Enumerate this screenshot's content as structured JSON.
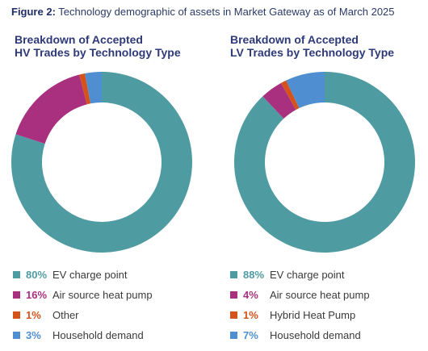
{
  "figure": {
    "label": "Figure 2:",
    "caption": "Technology demographic of assets in Market Gateway as of March 2025"
  },
  "chart_data": [
    {
      "type": "pie",
      "title_lines": [
        "Breakdown of Accepted",
        "HV Trades by Technology Type"
      ],
      "slices": [
        {
          "label": "EV charge point",
          "percent_label": "80%",
          "value": 80,
          "color": "#4f9ba2"
        },
        {
          "label": "Air source heat pump",
          "percent_label": "16%",
          "value": 16,
          "color": "#a8307f"
        },
        {
          "label": "Other",
          "percent_label": "1%",
          "value": 1,
          "color": "#d5521b"
        },
        {
          "label": "Household demand",
          "percent_label": "3%",
          "value": 3,
          "color": "#4f8fd1"
        }
      ]
    },
    {
      "type": "pie",
      "title_lines": [
        "Breakdown of Accepted",
        "LV Trades by Technology Type"
      ],
      "slices": [
        {
          "label": "EV charge point",
          "percent_label": "88%",
          "value": 88,
          "color": "#4f9ba2"
        },
        {
          "label": "Air source heat pump",
          "percent_label": "4%",
          "value": 4,
          "color": "#a8307f"
        },
        {
          "label": "Hybrid Heat Pump",
          "percent_label": "1%",
          "value": 1,
          "color": "#d5521b"
        },
        {
          "label": "Household demand",
          "percent_label": "7%",
          "value": 7,
          "color": "#4f8fd1"
        }
      ]
    }
  ]
}
